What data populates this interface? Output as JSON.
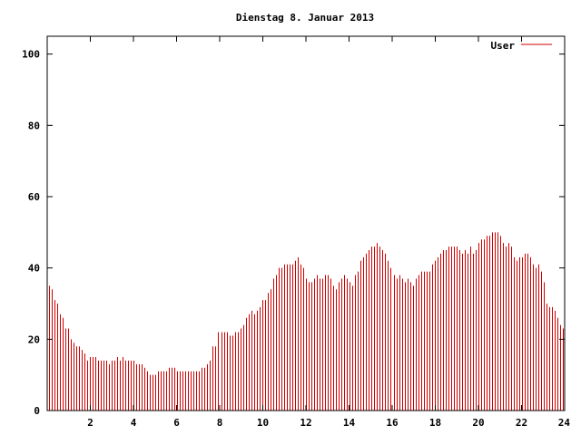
{
  "chart_data": {
    "type": "bar",
    "title": "Dienstag 8. Januar 2013",
    "xlabel": "",
    "ylabel": "",
    "xlim": [
      0,
      24
    ],
    "ylim": [
      0,
      105
    ],
    "x_ticks": [
      "2",
      "4",
      "6",
      "8",
      "10",
      "12",
      "14",
      "16",
      "18",
      "20",
      "22",
      "24"
    ],
    "y_ticks": [
      "0",
      "20",
      "40",
      "60",
      "80",
      "100"
    ],
    "grid": false,
    "legend_position": "top-right",
    "series": [
      {
        "name": "User",
        "color": "#cc0000",
        "values": [
          35,
          34,
          31,
          30,
          27,
          26,
          23,
          23,
          20,
          19,
          18,
          18,
          17,
          16,
          14,
          15,
          15,
          15,
          14,
          14,
          14,
          14,
          13,
          14,
          14,
          15,
          14,
          15,
          14,
          14,
          14,
          14,
          13,
          13,
          13,
          12,
          11,
          10,
          10,
          10,
          11,
          11,
          11,
          11,
          12,
          12,
          12,
          11,
          11,
          11,
          11,
          11,
          11,
          11,
          11,
          11,
          12,
          12,
          13,
          14,
          18,
          18,
          22,
          22,
          22,
          22,
          21,
          21,
          22,
          22,
          23,
          24,
          26,
          27,
          28,
          27,
          28,
          29,
          31,
          31,
          33,
          34,
          37,
          38,
          40,
          40,
          41,
          41,
          41,
          41,
          42,
          43,
          41,
          40,
          37,
          36,
          36,
          37,
          38,
          37,
          37,
          38,
          38,
          37,
          35,
          34,
          36,
          37,
          38,
          37,
          36,
          35,
          38,
          39,
          42,
          43,
          44,
          45,
          46,
          46,
          47,
          46,
          45,
          44,
          42,
          40,
          38,
          37,
          38,
          37,
          36,
          37,
          36,
          35,
          37,
          38,
          39,
          39,
          39,
          39,
          41,
          42,
          43,
          44,
          45,
          45,
          46,
          46,
          46,
          46,
          45,
          44,
          45,
          44,
          46,
          44,
          45,
          47,
          48,
          48,
          49,
          49,
          50,
          50,
          50,
          49,
          47,
          46,
          47,
          46,
          43,
          42,
          43,
          43,
          44,
          44,
          43,
          41,
          40,
          41,
          39,
          36,
          30,
          29,
          29,
          28,
          26,
          24,
          23
        ]
      }
    ]
  }
}
